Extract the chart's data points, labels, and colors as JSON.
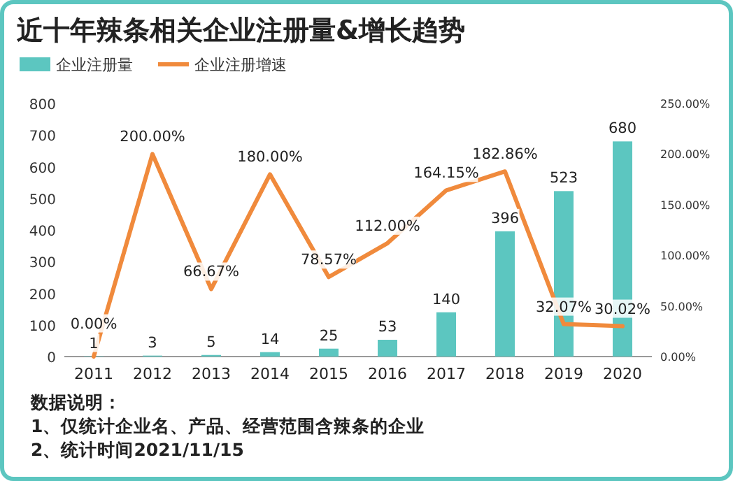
{
  "chart_data": {
    "type": "bar",
    "title": "近十年辣条相关企业注册量&增长趋势",
    "categories": [
      "2011",
      "2012",
      "2013",
      "2014",
      "2015",
      "2016",
      "2017",
      "2018",
      "2019",
      "2020"
    ],
    "series": [
      {
        "name": "企业注册量",
        "type": "bar",
        "color": "#5cc6c0",
        "values": [
          1,
          3,
          5,
          14,
          25,
          53,
          140,
          396,
          523,
          680
        ],
        "value_labels": [
          "1",
          "3",
          "5",
          "14",
          "25",
          "53",
          "140",
          "396",
          "523",
          "680"
        ]
      },
      {
        "name": "企业注册增速",
        "type": "line",
        "axis": "y2",
        "color": "#f08a3c",
        "values": [
          0.0,
          200.0,
          66.67,
          180.0,
          78.57,
          112.0,
          164.15,
          182.86,
          32.07,
          30.02
        ],
        "value_labels": [
          "0.00%",
          "200.00%",
          "66.67%",
          "180.00%",
          "78.57%",
          "112.00%",
          "164.15%",
          "182.86%",
          "32.07%",
          "30.02%"
        ]
      }
    ],
    "ylim": [
      0,
      800
    ],
    "yticks": [
      0,
      100,
      200,
      300,
      400,
      500,
      600,
      700,
      800
    ],
    "y2lim": [
      0,
      250
    ],
    "y2ticks": [
      {
        "value": 0,
        "label": "0.00%"
      },
      {
        "value": 50,
        "label": "50.00%"
      },
      {
        "value": 100,
        "label": "100.00%"
      },
      {
        "value": 150,
        "label": "150.00%"
      },
      {
        "value": 200,
        "label": "200.00%"
      },
      {
        "value": 250,
        "label": "250.00%"
      }
    ],
    "legend": "top left",
    "annotations": [
      "数据说明：",
      "1、仅统计企业名、产品、经营范围含辣条的企业",
      "2、统计时间2021/11/15"
    ]
  }
}
